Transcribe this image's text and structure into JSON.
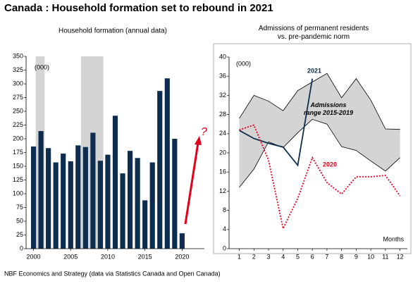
{
  "title": "Canada : Household formation set to rebound in 2021",
  "footer": "NBF Economics and Strategy (data via Statistics Canada and Open Canada)",
  "chart_data": [
    {
      "type": "bar",
      "title": "Household formation (annual data)",
      "unit_label": "(000)",
      "x": [
        2000,
        2001,
        2002,
        2003,
        2004,
        2005,
        2006,
        2007,
        2008,
        2009,
        2010,
        2011,
        2012,
        2013,
        2014,
        2015,
        2016,
        2017,
        2018,
        2019,
        2020
      ],
      "values": [
        186,
        214,
        183,
        157,
        173,
        159,
        188,
        185,
        211,
        160,
        171,
        242,
        137,
        178,
        165,
        88,
        157,
        287,
        310,
        200,
        28
      ],
      "color": "#0d2d4f",
      "xlim": [
        1999,
        2023
      ],
      "xticks": [
        2000,
        2005,
        2010,
        2015,
        2020
      ],
      "ylim": [
        0,
        350
      ],
      "yticks": [
        0,
        25,
        50,
        75,
        100,
        125,
        150,
        175,
        200,
        225,
        250,
        275,
        300,
        325,
        350
      ],
      "shaded_spans": [
        [
          2000.3,
          2001.5
        ],
        [
          2006.4,
          2009.4
        ]
      ],
      "shade_color": "#d4d4d4",
      "annotations": [
        {
          "text": "?",
          "color": "#e3001b"
        }
      ]
    },
    {
      "type": "line",
      "title": "Admissions of permanent residents vs. pre-pandemic norm",
      "unit_label": "(000)",
      "xlabel": "Months",
      "x": [
        1,
        2,
        3,
        4,
        5,
        6,
        7,
        8,
        9,
        10,
        11,
        12
      ],
      "band": {
        "name": "Admissions range 2015-2019",
        "color": "#d4d4d4",
        "upper": [
          27.2,
          32,
          30.8,
          28.8,
          33,
          34.8,
          36.6,
          31.5,
          35.5,
          31,
          25,
          24.9
        ],
        "lower": [
          12.8,
          16.6,
          22.3,
          21.1,
          24.2,
          27,
          26,
          21.3,
          20.5,
          18.3,
          16.2,
          19
        ]
      },
      "series": [
        {
          "name": "2021",
          "color": "#0d2d4f",
          "values": [
            24.7,
            23,
            22,
            21.2,
            17.4,
            35.5,
            null,
            null,
            null,
            null,
            null,
            null
          ]
        },
        {
          "name": "2020",
          "color": "#e3001b",
          "dashed": true,
          "values": [
            24.8,
            25.8,
            18.5,
            4.2,
            10.5,
            19,
            13.8,
            11.4,
            15,
            15,
            15.3,
            11
          ]
        }
      ],
      "xlim": [
        0.3,
        12.5
      ],
      "xticks": [
        1,
        2,
        3,
        4,
        5,
        6,
        7,
        8,
        9,
        10,
        11,
        12
      ],
      "ylim": [
        0,
        40
      ],
      "yticks": [
        0,
        4,
        8,
        12,
        16,
        20,
        24,
        28,
        32,
        36,
        40
      ]
    }
  ]
}
